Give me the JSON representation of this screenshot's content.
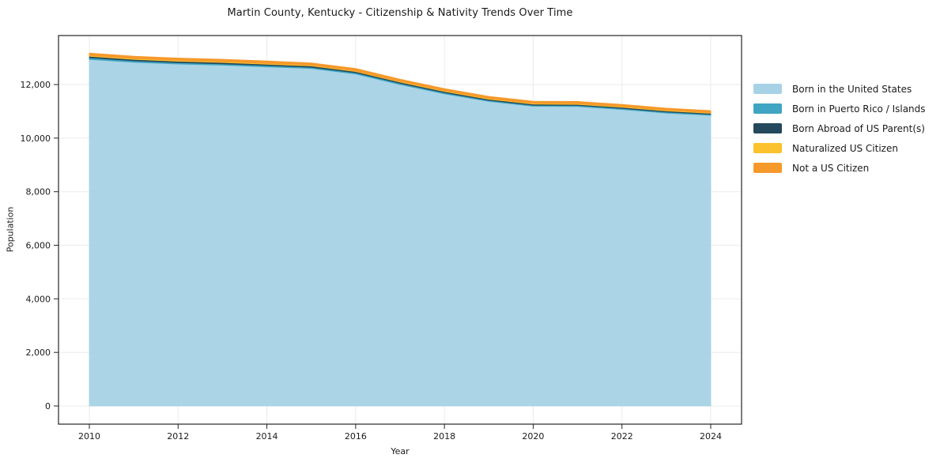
{
  "chart": {
    "title": "Martin County, Kentucky - Citizenship & Nativity Trends Over Time",
    "xlabel": "Year",
    "ylabel": "Population"
  },
  "colors": {
    "born_us": "#a7d2e6",
    "puerto_rico_islands": "#3fa5c2",
    "born_abroad": "#25495c",
    "naturalized": "#fcc22d",
    "not_citizen": "#f6992b",
    "gridline": "#ebebeb",
    "spine": "#262626",
    "text": "#1a1a1a"
  },
  "chart_data": {
    "type": "area",
    "stacked": true,
    "title": "Martin County, Kentucky - Citizenship & Nativity Trends Over Time",
    "xlabel": "Year",
    "ylabel": "Population",
    "grid": true,
    "legend_position": "right",
    "x": [
      2010,
      2011,
      2012,
      2013,
      2014,
      2015,
      2016,
      2017,
      2018,
      2019,
      2020,
      2021,
      2022,
      2023,
      2024
    ],
    "series": [
      {
        "name": "Born in the United States",
        "color": "#a7d2e6",
        "values": [
          12940,
          12830,
          12765,
          12725,
          12660,
          12600,
          12395,
          12000,
          11655,
          11370,
          11190,
          11180,
          11070,
          10935,
          10850
        ]
      },
      {
        "name": "Born in Puerto Rico / Islands",
        "color": "#3fa5c2",
        "values": [
          60,
          55,
          55,
          50,
          50,
          45,
          45,
          45,
          40,
          40,
          40,
          40,
          40,
          40,
          40
        ]
      },
      {
        "name": "Born Abroad of US Parent(s)",
        "color": "#25495c",
        "values": [
          55,
          55,
          50,
          50,
          50,
          50,
          45,
          45,
          45,
          40,
          40,
          40,
          40,
          40,
          35
        ]
      },
      {
        "name": "Naturalized US Citizen",
        "color": "#fcc22d",
        "values": [
          30,
          30,
          30,
          30,
          30,
          25,
          25,
          25,
          25,
          25,
          25,
          25,
          25,
          25,
          25
        ]
      },
      {
        "name": "Not a US Citizen",
        "color": "#f6992b",
        "values": [
          90,
          90,
          90,
          90,
          90,
          90,
          90,
          85,
          85,
          85,
          85,
          85,
          85,
          80,
          80
        ]
      }
    ],
    "xticks": [
      2010,
      2012,
      2014,
      2016,
      2018,
      2020,
      2022,
      2024
    ],
    "yticks": [
      0,
      2000,
      4000,
      6000,
      8000,
      10000,
      12000
    ],
    "ytick_labels": [
      "0",
      "2,000",
      "4,000",
      "6,000",
      "8,000",
      "10,000",
      "12,000"
    ],
    "ylim": [
      0,
      13830
    ],
    "xlim": [
      2010,
      2024
    ]
  }
}
